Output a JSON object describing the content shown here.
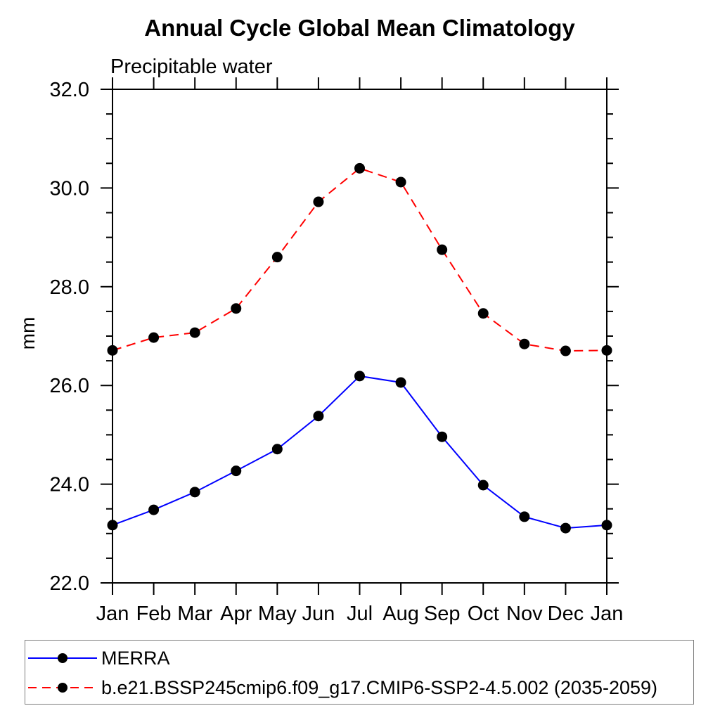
{
  "page": {
    "background": "#ffffff"
  },
  "chart_data": {
    "type": "line",
    "title": "Annual Cycle Global Mean Climatology",
    "subtitle": "Precipitable water",
    "ylabel": "mm",
    "xlabel": "",
    "categories": [
      "Jan",
      "Feb",
      "Mar",
      "Apr",
      "May",
      "Jun",
      "Jul",
      "Aug",
      "Sep",
      "Oct",
      "Nov",
      "Dec",
      "Jan"
    ],
    "ylim": [
      22.0,
      32.0
    ],
    "y_major_ticks": [
      22.0,
      24.0,
      26.0,
      28.0,
      30.0,
      32.0
    ],
    "y_tick_labels": [
      "22.0",
      "24.0",
      "26.0",
      "28.0",
      "30.0",
      "32.0"
    ],
    "y_minor_step": 0.5,
    "grid": false,
    "axis_color": "#000000",
    "marker_color": "#000000",
    "legend_position": "bottom-left-box",
    "series": [
      {
        "name": "MERRA",
        "color": "#0000ff",
        "line_style": "solid",
        "marker": "filled-circle",
        "values": [
          23.17,
          23.48,
          23.84,
          24.27,
          24.71,
          25.38,
          26.19,
          26.06,
          24.96,
          23.98,
          23.34,
          23.11,
          23.17
        ]
      },
      {
        "name": "b.e21.BSSP245cmip6.f09_g17.CMIP6-SSP2-4.5.002 (2035-2059)",
        "color": "#ff0000",
        "line_style": "dashed",
        "marker": "filled-circle",
        "values": [
          26.71,
          26.97,
          27.07,
          27.56,
          28.6,
          29.72,
          30.4,
          30.12,
          28.75,
          27.46,
          26.84,
          26.7,
          26.71
        ]
      }
    ]
  }
}
